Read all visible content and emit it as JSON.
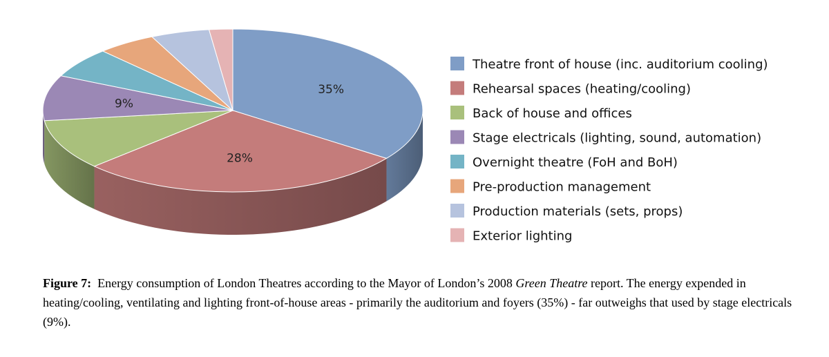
{
  "chart_data": {
    "type": "pie",
    "title": "",
    "categories": [
      "Theatre front of house (inc. auditorium cooling)",
      "Rehearsal spaces (heating/cooling)",
      "Back of house and offices",
      "Stage electricals (lighting, sound, automation)",
      "Overnight theatre (FoH and BoH)",
      "Pre-production management",
      "Production materials (sets, props)",
      "Exterior lighting"
    ],
    "values": [
      35,
      28,
      10,
      9,
      6,
      5,
      5,
      2
    ],
    "colors": [
      "#7f9dc6",
      "#c47c7b",
      "#a9c07c",
      "#9b88b5",
      "#74b4c6",
      "#e7a67b",
      "#b6c3de",
      "#e5b3b4"
    ],
    "data_labels": [
      {
        "index": 0,
        "text": "35%"
      },
      {
        "index": 1,
        "text": "28%"
      },
      {
        "index": 3,
        "text": "9%"
      }
    ],
    "legend_position": "right",
    "style": "3d-tilted"
  },
  "caption": {
    "label": "Figure 7:",
    "text_before": "Energy consumption of London Theatres according to the Mayor of London’s 2008",
    "italic": "Green Theatre",
    "text_after": "report.  The energy expended in heating/cooling, ventilating and lighting front-of-house areas - primarily the auditorium and foyers (35%) - far outweighs that used by stage electricals (9%)."
  }
}
